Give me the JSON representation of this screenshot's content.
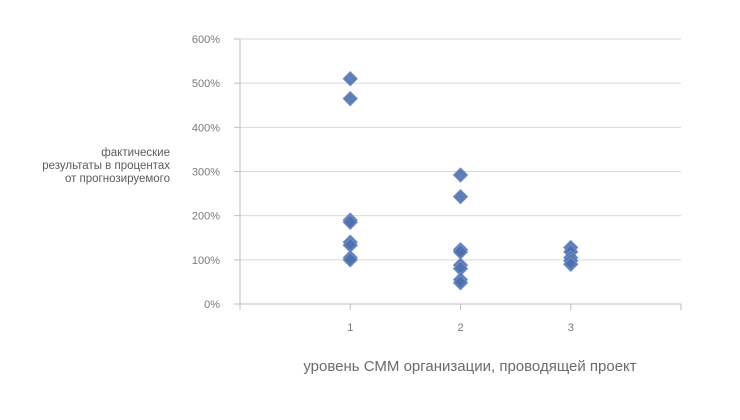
{
  "chart_data": {
    "type": "scatter",
    "title": "",
    "xlabel": "уровень СММ организации, проводящей проект",
    "ylabel_lines": [
      "фактические",
      "результаты в процентах",
      "от прогнозируемого"
    ],
    "xlim": [
      0,
      4
    ],
    "ylim": [
      0,
      600
    ],
    "x_ticks": [
      1,
      2,
      3
    ],
    "x_tick_labels": [
      "1",
      "2",
      "3"
    ],
    "y_ticks": [
      0,
      100,
      200,
      300,
      400,
      500,
      600
    ],
    "y_tick_labels": [
      "0%",
      "100%",
      "200%",
      "300%",
      "400%",
      "500%",
      "600%"
    ],
    "grid": "horizontal",
    "marker": "diamond",
    "marker_color": "#4e6fae",
    "points": [
      {
        "x": 1,
        "y": 510
      },
      {
        "x": 1,
        "y": 465
      },
      {
        "x": 1,
        "y": 190
      },
      {
        "x": 1,
        "y": 185
      },
      {
        "x": 1,
        "y": 140
      },
      {
        "x": 1,
        "y": 133
      },
      {
        "x": 1,
        "y": 105
      },
      {
        "x": 1,
        "y": 100
      },
      {
        "x": 2,
        "y": 292
      },
      {
        "x": 2,
        "y": 243
      },
      {
        "x": 2,
        "y": 123
      },
      {
        "x": 2,
        "y": 118
      },
      {
        "x": 2,
        "y": 88
      },
      {
        "x": 2,
        "y": 80
      },
      {
        "x": 2,
        "y": 55
      },
      {
        "x": 2,
        "y": 48
      },
      {
        "x": 3,
        "y": 128
      },
      {
        "x": 3,
        "y": 118
      },
      {
        "x": 3,
        "y": 105
      },
      {
        "x": 3,
        "y": 98
      },
      {
        "x": 3,
        "y": 90
      }
    ]
  }
}
